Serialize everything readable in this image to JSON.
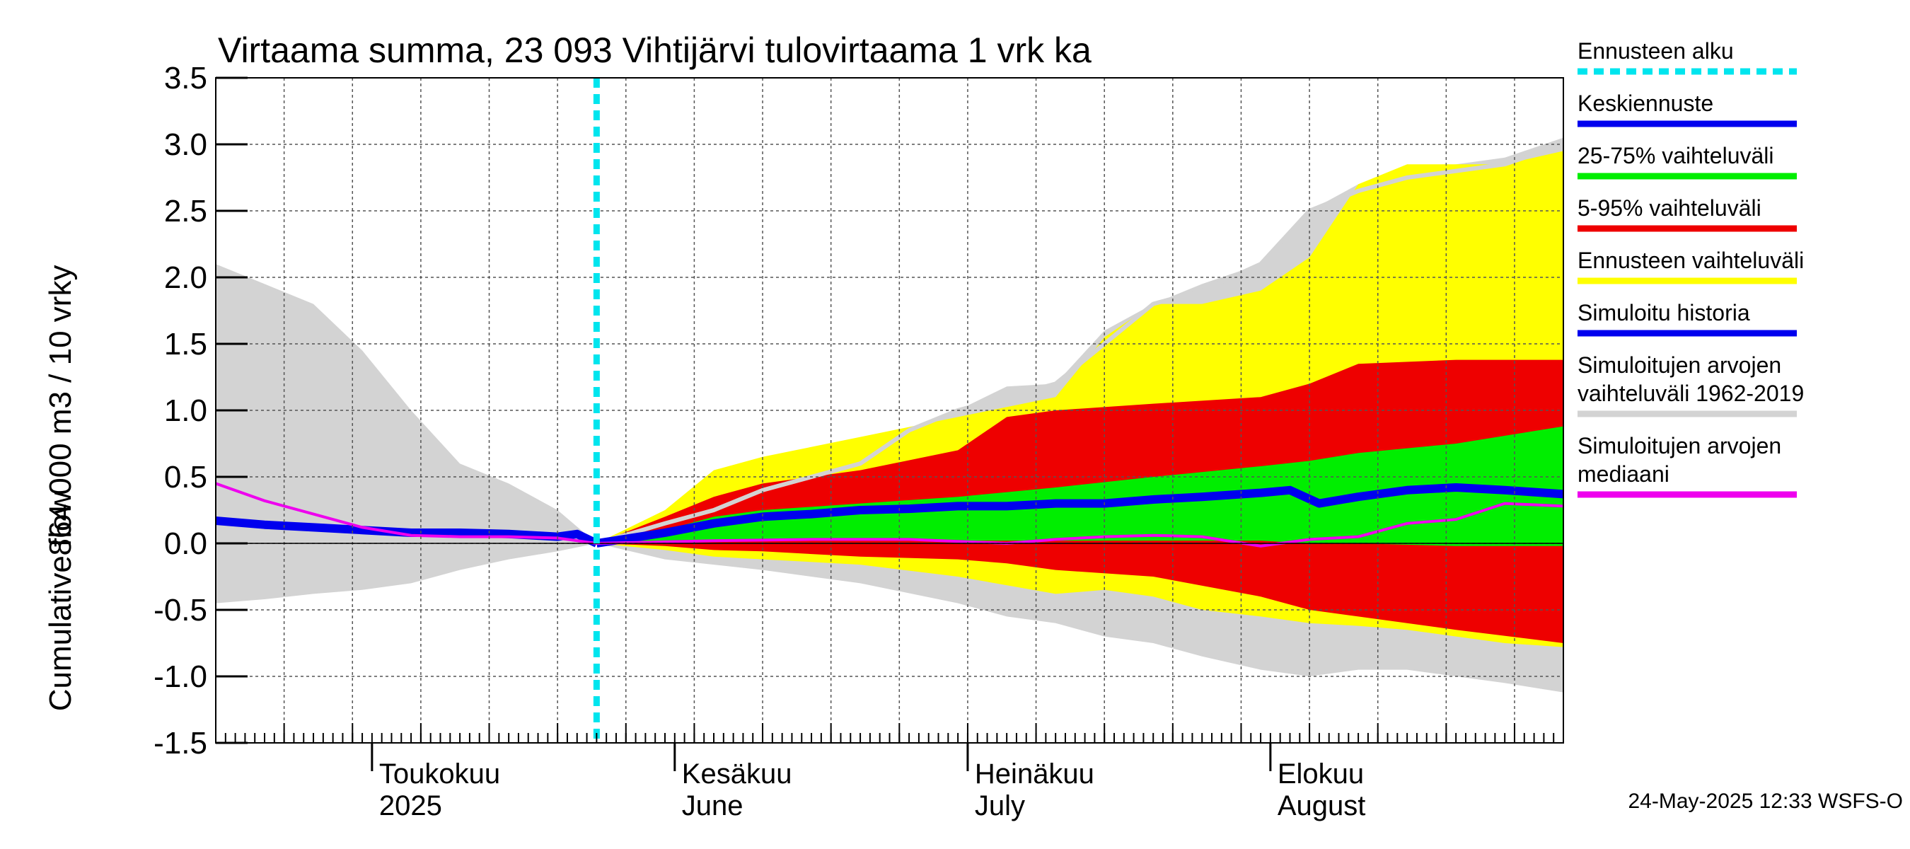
{
  "chart_data": {
    "type": "area",
    "title": "Virtaama summa, 23 093 Vihtijärvi tulovirtaama 1 vrk ka",
    "ylabel_line1": "864 000 m3 / 10 vrky",
    "ylabel_line2": "Cumulative flow",
    "ylim": [
      -1.5,
      3.5
    ],
    "yticks": [
      "3.5",
      "3.0",
      "2.5",
      "2.0",
      "1.5",
      "1.0",
      "0.5",
      "0.0",
      "-0.5",
      "-1.0",
      "-1.5"
    ],
    "x_range": [
      "2025-04-15",
      "2025-08-31"
    ],
    "forecast_start": "2025-05-24",
    "grid": true,
    "month_labels": [
      {
        "date": "2025-05-01",
        "line1": "Toukokuu",
        "line2": "2025"
      },
      {
        "date": "2025-06-01",
        "line1": "Kesäkuu",
        "line2": "June"
      },
      {
        "date": "2025-07-01",
        "line1": "Heinäkuu",
        "line2": "July"
      },
      {
        "date": "2025-08-01",
        "line1": "Elokuu",
        "line2": "August"
      }
    ],
    "legend": [
      {
        "label": "Ennusteen alku",
        "color": "#00e5ee",
        "style": "dashed"
      },
      {
        "label": "Keskiennuste",
        "color": "#0000ee",
        "style": "line"
      },
      {
        "label": "25-75% vaihteluväli",
        "color": "#00ee00",
        "style": "line"
      },
      {
        "label": "5-95% vaihteluväli",
        "color": "#ee0000",
        "style": "line"
      },
      {
        "label": "Ennusteen vaihteluväli",
        "color": "#ffff00",
        "style": "line"
      },
      {
        "label": "Simuloitu historia",
        "color": "#0000ee",
        "style": "line"
      },
      {
        "label": "Simuloitujen arvojen vaihteluväli 1962-2019",
        "color": "#d3d3d3",
        "style": "line"
      },
      {
        "label": "Simuloitujen arvojen mediaani",
        "color": "#ee00ee",
        "style": "line"
      }
    ],
    "legend_lines": [
      [
        "Ennusteen alku"
      ],
      [
        "Keskiennuste"
      ],
      [
        "25-75% vaihteluväli"
      ],
      [
        "5-95% vaihteluväli"
      ],
      [
        "Ennusteen vaihteluväli"
      ],
      [
        "Simuloitu historia"
      ],
      [
        "Simuloitujen arvojen",
        "vaihteluväli 1962-2019"
      ],
      [
        "Simuloitujen arvojen",
        "mediaani"
      ]
    ],
    "series": {
      "sim_range": {
        "x": [
          "2025-04-15",
          "2025-04-20",
          "2025-04-25",
          "2025-04-30",
          "2025-05-05",
          "2025-05-10",
          "2025-05-15",
          "2025-05-20",
          "2025-05-24",
          "2025-05-31",
          "2025-06-10",
          "2025-06-20",
          "2025-06-30",
          "2025-07-05",
          "2025-07-10",
          "2025-07-15",
          "2025-07-20",
          "2025-07-25",
          "2025-07-31",
          "2025-08-05",
          "2025-08-10",
          "2025-08-15",
          "2025-08-20",
          "2025-08-25",
          "2025-08-31"
        ],
        "upper": [
          2.1,
          1.95,
          1.8,
          1.45,
          1.0,
          0.6,
          0.45,
          0.25,
          0.0,
          0.2,
          0.4,
          0.7,
          1.0,
          1.18,
          1.2,
          1.6,
          1.8,
          1.95,
          2.1,
          2.5,
          2.7,
          2.8,
          2.85,
          2.9,
          3.05
        ],
        "lower": [
          -0.45,
          -0.42,
          -0.38,
          -0.35,
          -0.3,
          -0.2,
          -0.12,
          -0.06,
          0.0,
          -0.12,
          -0.2,
          -0.3,
          -0.45,
          -0.55,
          -0.6,
          -0.7,
          -0.75,
          -0.85,
          -0.95,
          -1.0,
          -0.95,
          -0.95,
          -1.0,
          -1.05,
          -1.12
        ]
      },
      "ennuste_range": {
        "x": [
          "2025-05-24",
          "2025-05-31",
          "2025-06-05",
          "2025-06-10",
          "2025-06-20",
          "2025-06-30",
          "2025-07-10",
          "2025-07-15",
          "2025-07-20",
          "2025-07-25",
          "2025-07-31",
          "2025-08-05",
          "2025-08-10",
          "2025-08-15",
          "2025-08-20",
          "2025-08-25",
          "2025-08-31"
        ],
        "upper": [
          0.0,
          0.25,
          0.55,
          0.65,
          0.8,
          0.95,
          1.1,
          1.55,
          1.8,
          1.8,
          1.9,
          2.15,
          2.7,
          2.85,
          2.85,
          2.85,
          2.95
        ],
        "lower": [
          0.0,
          -0.05,
          -0.1,
          -0.12,
          -0.16,
          -0.25,
          -0.38,
          -0.35,
          -0.4,
          -0.5,
          -0.55,
          -0.6,
          -0.62,
          -0.65,
          -0.7,
          -0.75,
          -0.78
        ]
      },
      "p5_95": {
        "x": [
          "2025-05-24",
          "2025-05-31",
          "2025-06-05",
          "2025-06-10",
          "2025-06-20",
          "2025-06-30",
          "2025-07-05",
          "2025-07-10",
          "2025-07-20",
          "2025-07-31",
          "2025-08-05",
          "2025-08-10",
          "2025-08-20",
          "2025-08-31"
        ],
        "upper": [
          0.0,
          0.2,
          0.35,
          0.45,
          0.55,
          0.7,
          0.95,
          1.0,
          1.05,
          1.1,
          1.2,
          1.35,
          1.38,
          1.38
        ],
        "lower": [
          0.0,
          -0.02,
          -0.05,
          -0.06,
          -0.1,
          -0.12,
          -0.15,
          -0.2,
          -0.25,
          -0.4,
          -0.5,
          -0.55,
          -0.65,
          -0.75
        ]
      },
      "p25_75": {
        "x": [
          "2025-05-24",
          "2025-05-31",
          "2025-06-05",
          "2025-06-10",
          "2025-06-20",
          "2025-06-30",
          "2025-07-10",
          "2025-07-20",
          "2025-07-31",
          "2025-08-05",
          "2025-08-10",
          "2025-08-20",
          "2025-08-31"
        ],
        "upper": [
          0.0,
          0.1,
          0.2,
          0.25,
          0.3,
          0.35,
          0.42,
          0.5,
          0.58,
          0.62,
          0.68,
          0.75,
          0.88
        ],
        "lower": [
          0.0,
          0.02,
          0.02,
          0.02,
          0.02,
          0.02,
          0.02,
          0.02,
          0.02,
          0.0,
          0.0,
          -0.02,
          -0.02
        ]
      },
      "sim_range_top_line": {
        "x": [
          "2025-05-24",
          "2025-05-31",
          "2025-06-05",
          "2025-06-10",
          "2025-06-20",
          "2025-06-25",
          "2025-06-30",
          "2025-07-05",
          "2025-07-10",
          "2025-07-15",
          "2025-07-20",
          "2025-07-25",
          "2025-07-31",
          "2025-08-05",
          "2025-08-10",
          "2025-08-15",
          "2025-08-20",
          "2025-08-25",
          "2025-08-31"
        ],
        "values": [
          0.0,
          0.15,
          0.25,
          0.4,
          0.6,
          0.85,
          1.0,
          1.1,
          1.2,
          1.5,
          1.8,
          1.9,
          2.1,
          2.5,
          2.65,
          2.75,
          2.8,
          2.85,
          3.0
        ]
      },
      "keskiennuste": {
        "x": [
          "2025-05-24",
          "2025-05-31",
          "2025-06-05",
          "2025-06-10",
          "2025-06-15",
          "2025-06-20",
          "2025-06-25",
          "2025-06-30",
          "2025-07-05",
          "2025-07-10",
          "2025-07-15",
          "2025-07-20",
          "2025-07-25",
          "2025-07-31",
          "2025-08-03",
          "2025-08-06",
          "2025-08-10",
          "2025-08-15",
          "2025-08-20",
          "2025-08-25",
          "2025-08-31"
        ],
        "values": [
          0.0,
          0.08,
          0.15,
          0.2,
          0.22,
          0.25,
          0.26,
          0.28,
          0.28,
          0.3,
          0.3,
          0.33,
          0.35,
          0.38,
          0.4,
          0.3,
          0.35,
          0.4,
          0.42,
          0.4,
          0.37
        ]
      },
      "simuloitu_historia": {
        "x": [
          "2025-04-15",
          "2025-04-20",
          "2025-04-25",
          "2025-04-30",
          "2025-05-05",
          "2025-05-10",
          "2025-05-15",
          "2025-05-20",
          "2025-05-22",
          "2025-05-24"
        ],
        "values": [
          0.17,
          0.14,
          0.12,
          0.1,
          0.08,
          0.08,
          0.07,
          0.05,
          0.07,
          0.0
        ]
      },
      "mediaani": {
        "x": [
          "2025-04-15",
          "2025-04-20",
          "2025-04-25",
          "2025-04-30",
          "2025-05-05",
          "2025-05-10",
          "2025-05-15",
          "2025-05-20",
          "2025-05-24",
          "2025-06-05",
          "2025-06-15",
          "2025-06-25",
          "2025-07-05",
          "2025-07-10",
          "2025-07-15",
          "2025-07-20",
          "2025-07-25",
          "2025-07-31",
          "2025-08-05",
          "2025-08-10",
          "2025-08-15",
          "2025-08-20",
          "2025-08-25",
          "2025-08-31"
        ],
        "values": [
          0.45,
          0.32,
          0.22,
          0.12,
          0.06,
          0.05,
          0.05,
          0.04,
          0.0,
          0.02,
          0.03,
          0.03,
          0.0,
          0.03,
          0.05,
          0.06,
          0.05,
          -0.02,
          0.03,
          0.05,
          0.15,
          0.18,
          0.3,
          0.28
        ]
      }
    }
  },
  "timestamp": "24-May-2025 12:33 WSFS-O"
}
